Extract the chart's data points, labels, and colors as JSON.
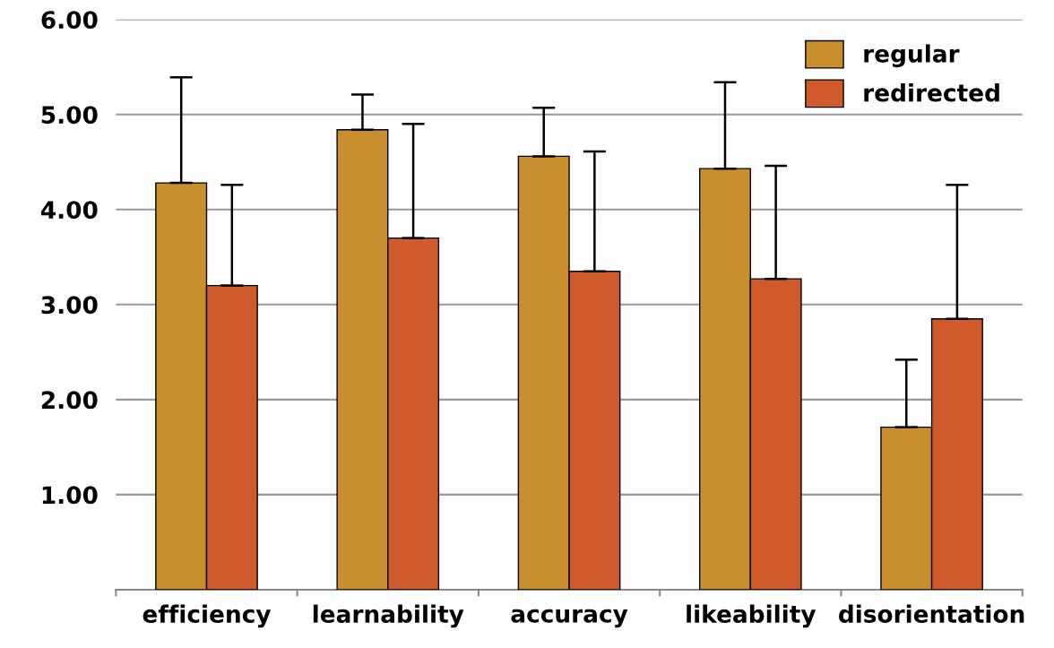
{
  "chart_data": {
    "type": "bar",
    "categories": [
      "efficiency",
      "learnability",
      "accuracy",
      "likeability",
      "disorientation"
    ],
    "series": [
      {
        "name": "regular",
        "color": "#c98f2e",
        "values": [
          4.28,
          4.84,
          4.56,
          4.43,
          1.71
        ],
        "errors": [
          [
            4.28,
            5.39
          ],
          [
            4.84,
            5.21
          ],
          [
            4.56,
            5.07
          ],
          [
            4.43,
            5.34
          ],
          [
            1.71,
            2.42
          ]
        ]
      },
      {
        "name": "redirected",
        "color": "#cf5a2c",
        "values": [
          3.2,
          3.7,
          3.35,
          3.27,
          2.85
        ],
        "errors": [
          [
            3.2,
            4.26
          ],
          [
            3.7,
            4.9
          ],
          [
            3.35,
            4.61
          ],
          [
            3.27,
            4.46
          ],
          [
            2.85,
            4.26
          ]
        ]
      }
    ],
    "ylim": [
      0,
      6
    ],
    "yticks": [
      {
        "value": 1,
        "label": "1.00"
      },
      {
        "value": 2,
        "label": "2.00"
      },
      {
        "value": 3,
        "label": "3.00"
      },
      {
        "value": 4,
        "label": "4.00"
      },
      {
        "value": 5,
        "label": "5.00"
      },
      {
        "value": 6,
        "label": "6.00"
      }
    ],
    "grid": "y",
    "legend": "top right"
  }
}
